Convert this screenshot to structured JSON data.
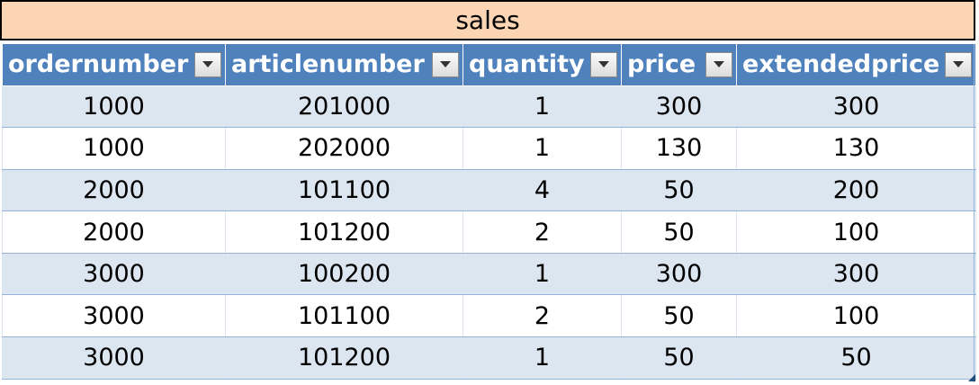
{
  "table": {
    "title": "sales",
    "columns": [
      "ordernumber",
      "articlenumber",
      "quantity",
      "price",
      "extendedprice"
    ],
    "rows": [
      [
        "1000",
        "201000",
        "1",
        "300",
        "300"
      ],
      [
        "1000",
        "202000",
        "1",
        "130",
        "130"
      ],
      [
        "2000",
        "101100",
        "4",
        "50",
        "200"
      ],
      [
        "2000",
        "101200",
        "2",
        "50",
        "100"
      ],
      [
        "3000",
        "100200",
        "1",
        "300",
        "300"
      ],
      [
        "3000",
        "101100",
        "2",
        "50",
        "100"
      ],
      [
        "3000",
        "101200",
        "1",
        "50",
        "50"
      ]
    ]
  },
  "colors": {
    "title_bg": "#fcd5b4",
    "header_bg": "#4f81bd",
    "band_row_bg": "#dce6f1",
    "plain_row_bg": "#ffffff"
  },
  "icons": {
    "filter": "dropdown-arrow-icon",
    "resize": "table-resize-handle-icon"
  }
}
